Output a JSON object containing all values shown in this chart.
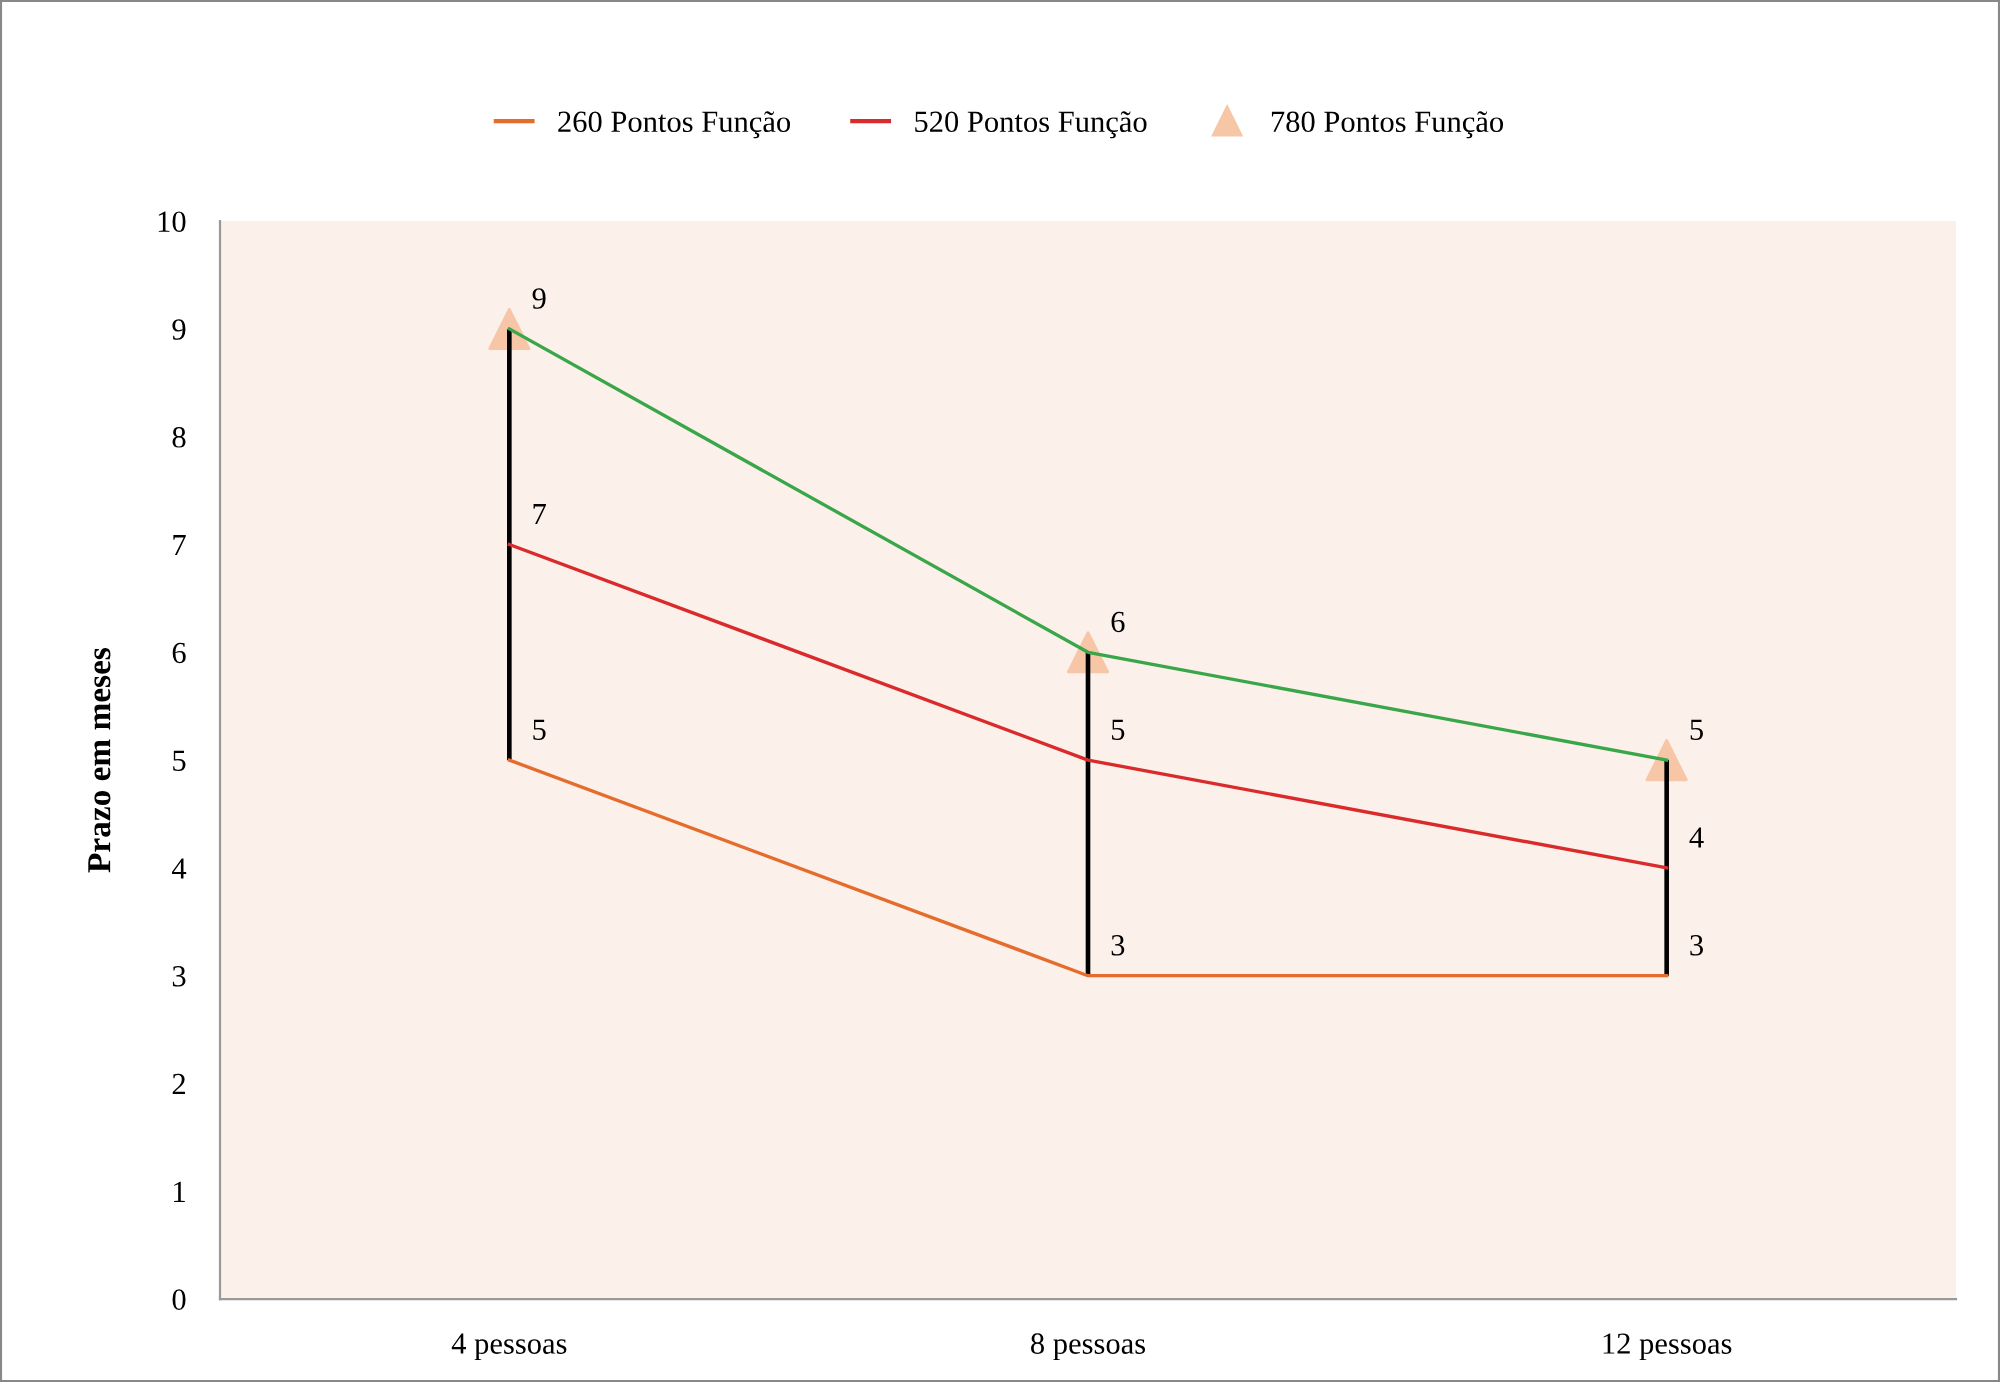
{
  "chart_data": {
    "type": "line",
    "ylabel": "Prazo em meses",
    "categories": [
      "4 pessoas",
      "8 pessoas",
      "12 pessoas"
    ],
    "series": [
      {
        "type": "bar",
        "color": "#000000",
        "base": [
          5,
          3,
          3
        ],
        "values": [
          4,
          3,
          2
        ]
      },
      {
        "name": "260 Pontos Função",
        "color": "#e46c2c",
        "values": [
          5,
          3,
          3
        ],
        "marker": "none",
        "data_labels": true
      },
      {
        "name": "520 Pontos Função",
        "color": "#d92b2b",
        "values": [
          7,
          5,
          4
        ],
        "marker": "none",
        "data_labels": true
      },
      {
        "name": "780 Pontos Função",
        "color": "#3aa64a",
        "values": [
          9,
          6,
          5
        ],
        "marker": "triangle",
        "colors": [
          "#f7c6a6",
          "#f7c6a6",
          "#f7c6a6"
        ],
        "data_labels": true
      }
    ],
    "ylim": [
      0,
      10
    ],
    "yticks": [
      0,
      1,
      2,
      3,
      4,
      5,
      6,
      7,
      8,
      9,
      10
    ],
    "grid": false,
    "legend": "top"
  }
}
